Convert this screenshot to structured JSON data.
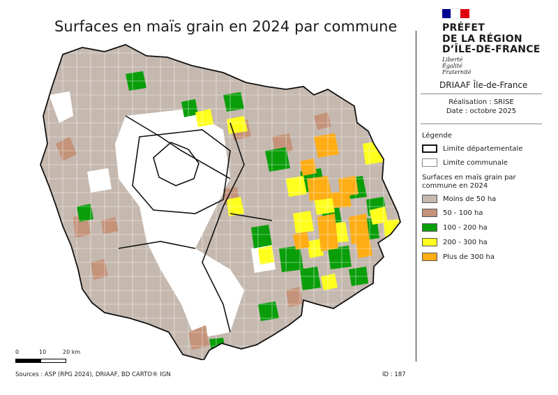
{
  "title": "Surfaces en maïs grain en 2024 par commune",
  "institution": {
    "line1": "PRÉFET",
    "line2": "DE LA RÉGION",
    "line3": "D’ÎLE-DE-FRANCE",
    "motto1": "Liberté",
    "motto2": "Égalité",
    "motto3": "Fraternité",
    "flag_colors": [
      "#000091",
      "#ffffff",
      "#e1000f"
    ],
    "service": "DRIAAF Île-de-France"
  },
  "credits": {
    "realisation": "Réalisation : SRISE",
    "date": "Date : octobre 2025"
  },
  "legend": {
    "title": "Légende",
    "dept_limit": "Limite départementale",
    "commune_limit": "Limite communale",
    "classes_title": "Surfaces en maïs grain par commune en 2024",
    "classes": [
      {
        "label": "Moins de 50 ha",
        "color": "#c5b8ae"
      },
      {
        "label": "50 - 100 ha",
        "color": "#c4937a"
      },
      {
        "label": "100 - 200 ha",
        "color": "#0a9e0a"
      },
      {
        "label": "200 - 300 ha",
        "color": "#ffff1e"
      },
      {
        "label": "Plus de 300 ha",
        "color": "#ffad14"
      }
    ],
    "no_data_color": "#ffffff"
  },
  "scale": {
    "t0": "0",
    "t1": "10",
    "t2": "20 km"
  },
  "sources": "Sources : ASP (RPG 2024), DRIAAF, BD CARTO® IGN",
  "map_id": "ID : 187"
}
